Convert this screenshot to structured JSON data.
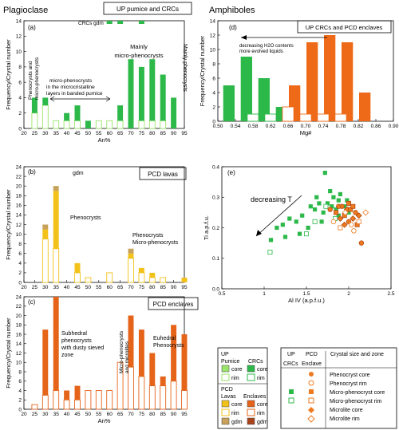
{
  "colors": {
    "plag_up": "#2db84a",
    "plag_up_light": "#9be36a",
    "plag_lava": "#f2c21a",
    "plag_lava_gdm": "#c8a25a",
    "plag_encl": "#e5641a",
    "amph_green": "#2db84a",
    "amph_orange": "#ee6a18",
    "scatter_green": "#2db84a",
    "scatter_orange": "#ee7a20"
  },
  "labels": {
    "plag_title": "Plagioclase",
    "amph_title": "Amphiboles",
    "box_a": "UP pumice and CRCs",
    "box_b": "PCD lavas",
    "box_c": "PCD enclaves",
    "box_d": "UP CRCs and PCD enclaves",
    "panel_a": "(a)",
    "panel_b": "(b)",
    "panel_c": "(c)",
    "panel_d": "(d)",
    "panel_e": "(e)",
    "ylabel_freq": "Frequency/Crystal number",
    "xlabel_an": "An%",
    "xlabel_mg": "Mg#",
    "ylabel_ti": "Ti a.p.f.u.",
    "xlabel_al": "Al IV (a.p.f.u.)",
    "ann_a_crc_gdm": "CRCs gdm",
    "ann_a_pheno_line1": "Phenocrysts and",
    "ann_a_pheno_line2": "micro-phenocrysts",
    "ann_a_micro_line1": "micro-phenocrysts",
    "ann_a_micro_line2": "in the microcristalline",
    "ann_a_micro_line3": "layers in banded pumice",
    "ann_a_mainly_micro_line1": "Mainly",
    "ann_a_mainly_micro_line2": "micro-phenocrysts",
    "ann_a_mainly_pheno": "Mainly phenocrysts",
    "ann_b_gdm": "gdm",
    "ann_b_pheno": "Phenocrysts",
    "ann_b_pheno2_line1": "Phenocrysts",
    "ann_b_pheno2_line2": "Micro-phenocrysts",
    "ann_c_sub_line1": "Subhedral",
    "ann_c_sub_line2": "phenocrysts",
    "ann_c_sub_line3": "with dusty sieved",
    "ann_c_sub_line4": "zone",
    "ann_c_micro_line1": "Micro-phenocrysts",
    "ann_c_micro_line2": "and microlites",
    "ann_c_eu_line1": "Euhedral",
    "ann_c_eu_line2": "Phenocrysts",
    "ann_d_line1": "decreasing H2O contents",
    "ann_d_line2": "more evolved liquids",
    "ann_e": "decreasing T"
  },
  "legend1": {
    "up": "UP",
    "pumice": "Pumice",
    "crcs": "CRCs",
    "core": "core",
    "rim": "rim",
    "pcd": "PCD",
    "lavas": "Lavas",
    "enclaves": "Enclaves",
    "gdm": "gdm"
  },
  "legend2": {
    "col_up": "UP",
    "col_pcd": "PCD",
    "col_zone": "Crystal size and zone",
    "sub_crcs": "CRCs",
    "sub_encl": "Enclave",
    "rows": [
      "Phenocryst core",
      "Phenocryst rim",
      "Micro-phenocryst core",
      "Micro-phenocryst rim",
      "Microlite core",
      "Microlite rim"
    ]
  },
  "chart_data": [
    {
      "id": "a",
      "type": "bar",
      "stacked": true,
      "x": [
        25,
        30,
        35,
        40,
        45,
        50,
        55,
        60,
        65,
        70,
        75,
        80,
        85,
        90,
        95
      ],
      "xlim": [
        20,
        95
      ],
      "ylim": [
        0,
        14
      ],
      "xticks": [
        "20",
        "25",
        "30",
        "35",
        "40",
        "45",
        "50",
        "55",
        "60",
        "65",
        "70",
        "75",
        "80",
        "85",
        "90",
        "95"
      ],
      "yticks": [
        "0",
        "2",
        "4",
        "6",
        "8",
        "10",
        "12",
        "14"
      ],
      "series": [
        {
          "name": "rim",
          "values": [
            2,
            3,
            1,
            1,
            1,
            0,
            1,
            1,
            1,
            0,
            1,
            1,
            1,
            0,
            0
          ]
        },
        {
          "name": "core",
          "values": [
            2,
            1,
            0,
            1,
            2,
            1,
            0,
            0,
            2,
            9,
            7,
            8,
            6,
            4,
            0
          ]
        }
      ],
      "annotation_bars": [
        {
          "x": 60,
          "label_key": "gdm"
        },
        {
          "x": 65,
          "label_key": "gdm"
        },
        {
          "x": 75,
          "label_key": "gdm"
        }
      ]
    },
    {
      "id": "b",
      "type": "bar",
      "stacked": true,
      "x": [
        25,
        30,
        35,
        40,
        45,
        50,
        55,
        60,
        65,
        70,
        75,
        80,
        85,
        90,
        95
      ],
      "xlim": [
        20,
        95
      ],
      "ylim": [
        0,
        24
      ],
      "xticks": [
        "20",
        "25",
        "30",
        "35",
        "40",
        "45",
        "50",
        "55",
        "60",
        "65",
        "70",
        "75",
        "80",
        "85",
        "90",
        "95"
      ],
      "yticks": [
        "0",
        "2",
        "4",
        "6",
        "8",
        "10",
        "12",
        "14",
        "16",
        "18",
        "20",
        "22",
        "24"
      ],
      "series": [
        {
          "name": "rim",
          "values": [
            0,
            9,
            7,
            0,
            2,
            1,
            0,
            2,
            0,
            5,
            2,
            1,
            1,
            0,
            0
          ]
        },
        {
          "name": "core",
          "values": [
            0,
            2,
            12,
            0,
            2,
            0,
            0,
            0,
            0,
            1,
            1,
            1,
            0,
            0,
            1
          ]
        },
        {
          "name": "gdm",
          "values": [
            0,
            1,
            1,
            0,
            0,
            0,
            0,
            0,
            0,
            1,
            0,
            0,
            0,
            0,
            0
          ]
        }
      ]
    },
    {
      "id": "c",
      "type": "bar",
      "stacked": true,
      "x": [
        25,
        30,
        35,
        40,
        45,
        50,
        55,
        60,
        65,
        70,
        75,
        80,
        85,
        90,
        95
      ],
      "xlim": [
        20,
        95
      ],
      "ylim": [
        0,
        24
      ],
      "xticks": [
        "20",
        "25",
        "30",
        "35",
        "40",
        "45",
        "50",
        "55",
        "60",
        "65",
        "70",
        "75",
        "80",
        "85",
        "90",
        "95"
      ],
      "yticks": [
        "0",
        "2",
        "4",
        "6",
        "8",
        "10",
        "12",
        "14",
        "16",
        "18",
        "20",
        "22",
        "24"
      ],
      "series": [
        {
          "name": "rim",
          "values": [
            1,
            3,
            4,
            2,
            2,
            4,
            4,
            4,
            10,
            9,
            7,
            5,
            5,
            6,
            4
          ]
        },
        {
          "name": "core",
          "values": [
            0,
            14,
            20,
            2,
            3,
            0,
            0,
            0,
            0,
            11,
            10,
            7,
            2,
            12,
            12
          ]
        }
      ]
    },
    {
      "id": "d",
      "type": "bar",
      "stacked": false,
      "x": [
        0.54,
        0.58,
        0.62,
        0.66,
        0.7,
        0.74,
        0.78,
        0.82
      ],
      "xlim": [
        0.5,
        0.9
      ],
      "ylim": [
        0,
        14
      ],
      "xticks": [
        "0.50",
        "0.54",
        "0.58",
        "0.62",
        "0.66",
        "0.70",
        "0.74",
        "0.78",
        "0.82",
        "0.86",
        "0.90"
      ],
      "yticks": [
        "0",
        "2",
        "4",
        "6",
        "8",
        "10",
        "12",
        "14"
      ],
      "series": [
        {
          "name": "UP CRCs",
          "values": [
            5,
            9,
            6,
            2,
            0,
            0,
            0,
            0
          ]
        },
        {
          "name": "PCD enclaves",
          "values": [
            0,
            1,
            1,
            5,
            11,
            12,
            11,
            4
          ]
        },
        {
          "name": "rim",
          "values": [
            0,
            1,
            1,
            2,
            1,
            1,
            1,
            0
          ]
        }
      ]
    },
    {
      "id": "e",
      "type": "scatter",
      "xlim": [
        0.5,
        2.5
      ],
      "ylim": [
        0.0,
        0.4
      ],
      "xticks": [
        "0.5",
        "1",
        "1.5",
        "2",
        "2.5"
      ],
      "yticks": [
        "0.0",
        "0.1",
        "0.2",
        "0.3",
        "0.4"
      ],
      "series": [
        {
          "name": "UP CRCs",
          "points": [
            [
              1.08,
              0.16
            ],
            [
              1.15,
              0.2
            ],
            [
              1.22,
              0.21
            ],
            [
              1.3,
              0.23
            ],
            [
              1.38,
              0.22
            ],
            [
              1.42,
              0.18
            ],
            [
              1.45,
              0.24
            ],
            [
              1.52,
              0.2
            ],
            [
              1.55,
              0.27
            ],
            [
              1.6,
              0.26
            ],
            [
              1.62,
              0.3
            ],
            [
              1.65,
              0.28
            ],
            [
              1.72,
              0.38
            ],
            [
              1.75,
              0.28
            ],
            [
              1.78,
              0.32
            ],
            [
              1.8,
              0.27
            ],
            [
              1.85,
              0.26
            ],
            [
              1.88,
              0.29
            ],
            [
              1.9,
              0.31
            ],
            [
              1.68,
              0.22
            ],
            [
              1.25,
              0.17
            ],
            [
              1.95,
              0.27
            ],
            [
              2.0,
              0.25
            ],
            [
              1.98,
              0.29
            ],
            [
              1.82,
              0.3
            ],
            [
              1.7,
              0.25
            ],
            [
              1.88,
              0.24
            ]
          ]
        },
        {
          "name": "UP CRCs rim",
          "points": [
            [
              1.07,
              0.12
            ],
            [
              1.5,
              0.18
            ],
            [
              1.6,
              0.22
            ],
            [
              1.73,
              0.27
            ],
            [
              1.84,
              0.23
            ]
          ]
        },
        {
          "name": "PCD enclaves",
          "points": [
            [
              1.78,
              0.26
            ],
            [
              1.85,
              0.25
            ],
            [
              1.9,
              0.23
            ],
            [
              1.92,
              0.27
            ],
            [
              1.95,
              0.24
            ],
            [
              1.98,
              0.26
            ],
            [
              2.0,
              0.22
            ],
            [
              2.02,
              0.26
            ],
            [
              2.05,
              0.23
            ],
            [
              2.08,
              0.25
            ],
            [
              2.1,
              0.21
            ],
            [
              2.12,
              0.24
            ],
            [
              2.15,
              0.15
            ],
            [
              2.05,
              0.27
            ],
            [
              1.95,
              0.21
            ],
            [
              1.88,
              0.27
            ],
            [
              2.0,
              0.28
            ]
          ]
        },
        {
          "name": "PCD enclaves rim",
          "points": [
            [
              1.82,
              0.22
            ],
            [
              1.9,
              0.2
            ],
            [
              1.96,
              0.25
            ],
            [
              2.03,
              0.21
            ],
            [
              2.12,
              0.22
            ],
            [
              2.2,
              0.25
            ],
            [
              2.06,
              0.19
            ]
          ]
        }
      ]
    }
  ]
}
